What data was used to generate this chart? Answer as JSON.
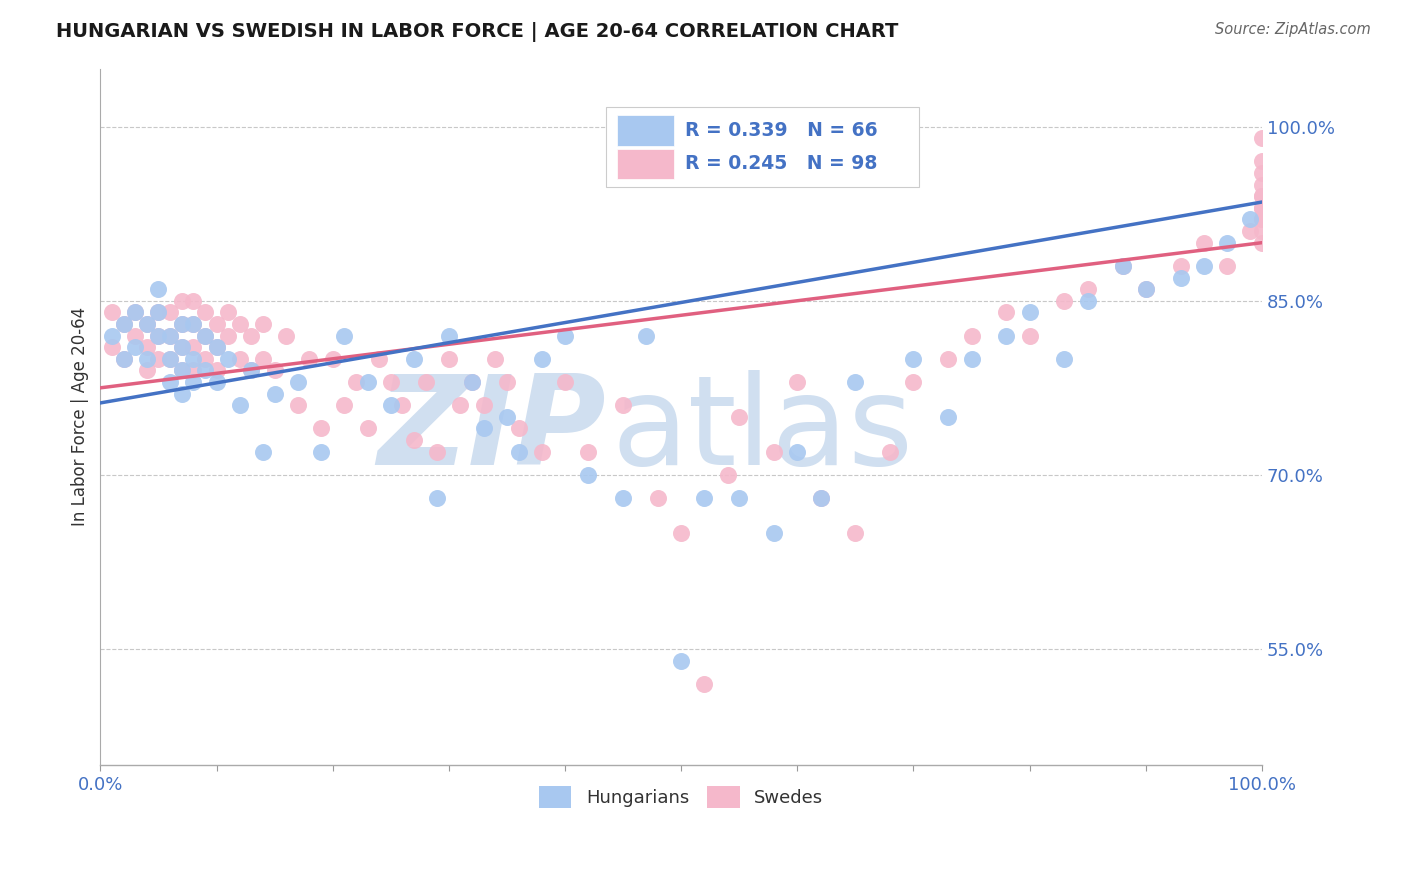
{
  "title": "HUNGARIAN VS SWEDISH IN LABOR FORCE | AGE 20-64 CORRELATION CHART",
  "source_text": "Source: ZipAtlas.com",
  "ylabel": "In Labor Force | Age 20-64",
  "xlim": [
    0.0,
    1.0
  ],
  "ylim": [
    0.45,
    1.05
  ],
  "x_ticks": [
    0.0,
    0.1,
    0.2,
    0.3,
    0.4,
    0.5,
    0.6,
    0.7,
    0.8,
    0.9,
    1.0
  ],
  "x_tick_labels": [
    "0.0%",
    "",
    "",
    "",
    "",
    "",
    "",
    "",
    "",
    "",
    "100.0%"
  ],
  "y_tick_labels_right": [
    "55.0%",
    "70.0%",
    "85.0%",
    "100.0%"
  ],
  "y_ticks_right": [
    0.55,
    0.7,
    0.85,
    1.0
  ],
  "hungarian_color": "#A8C8F0",
  "swedish_color": "#F5B8CB",
  "trend_hungarian_color": "#4472C4",
  "trend_swedish_color": "#E06080",
  "legend_text_color": "#4472C4",
  "R_hungarian": 0.339,
  "N_hungarian": 66,
  "R_swedish": 0.245,
  "N_swedish": 98,
  "watermark_zip": "ZIP",
  "watermark_atlas": "atlas",
  "watermark_color": "#D0DFF0",
  "background_color": "#FFFFFF",
  "grid_color": "#C8C8C8",
  "trend_h_x0": 0.0,
  "trend_h_y0": 0.762,
  "trend_h_x1": 1.0,
  "trend_h_y1": 0.935,
  "trend_s_x0": 0.0,
  "trend_s_y0": 0.775,
  "trend_s_x1": 1.0,
  "trend_s_y1": 0.9,
  "hungarian_x": [
    0.01,
    0.02,
    0.02,
    0.03,
    0.03,
    0.04,
    0.04,
    0.05,
    0.05,
    0.05,
    0.06,
    0.06,
    0.06,
    0.07,
    0.07,
    0.07,
    0.07,
    0.08,
    0.08,
    0.08,
    0.09,
    0.09,
    0.1,
    0.1,
    0.11,
    0.12,
    0.13,
    0.14,
    0.15,
    0.17,
    0.19,
    0.21,
    0.23,
    0.25,
    0.27,
    0.29,
    0.3,
    0.32,
    0.33,
    0.35,
    0.36,
    0.38,
    0.4,
    0.42,
    0.45,
    0.47,
    0.5,
    0.52,
    0.55,
    0.58,
    0.6,
    0.62,
    0.65,
    0.7,
    0.73,
    0.75,
    0.78,
    0.8,
    0.83,
    0.85,
    0.88,
    0.9,
    0.93,
    0.95,
    0.97,
    0.99
  ],
  "hungarian_y": [
    0.82,
    0.83,
    0.8,
    0.84,
    0.81,
    0.83,
    0.8,
    0.82,
    0.84,
    0.86,
    0.82,
    0.8,
    0.78,
    0.83,
    0.81,
    0.79,
    0.77,
    0.83,
    0.8,
    0.78,
    0.82,
    0.79,
    0.81,
    0.78,
    0.8,
    0.76,
    0.79,
    0.72,
    0.77,
    0.78,
    0.72,
    0.82,
    0.78,
    0.76,
    0.8,
    0.68,
    0.82,
    0.78,
    0.74,
    0.75,
    0.72,
    0.8,
    0.82,
    0.7,
    0.68,
    0.82,
    0.54,
    0.68,
    0.68,
    0.65,
    0.72,
    0.68,
    0.78,
    0.8,
    0.75,
    0.8,
    0.82,
    0.84,
    0.8,
    0.85,
    0.88,
    0.86,
    0.87,
    0.88,
    0.9,
    0.92
  ],
  "swedish_x": [
    0.01,
    0.01,
    0.02,
    0.02,
    0.03,
    0.03,
    0.04,
    0.04,
    0.04,
    0.05,
    0.05,
    0.05,
    0.06,
    0.06,
    0.06,
    0.07,
    0.07,
    0.07,
    0.07,
    0.08,
    0.08,
    0.08,
    0.08,
    0.09,
    0.09,
    0.09,
    0.1,
    0.1,
    0.1,
    0.11,
    0.11,
    0.12,
    0.12,
    0.13,
    0.13,
    0.14,
    0.14,
    0.15,
    0.16,
    0.17,
    0.18,
    0.19,
    0.2,
    0.21,
    0.22,
    0.23,
    0.24,
    0.25,
    0.26,
    0.27,
    0.28,
    0.29,
    0.3,
    0.31,
    0.32,
    0.33,
    0.34,
    0.35,
    0.36,
    0.38,
    0.4,
    0.42,
    0.45,
    0.48,
    0.5,
    0.52,
    0.54,
    0.55,
    0.58,
    0.6,
    0.62,
    0.65,
    0.68,
    0.7,
    0.73,
    0.75,
    0.78,
    0.8,
    0.83,
    0.85,
    0.88,
    0.9,
    0.93,
    0.95,
    0.97,
    0.99,
    1.0,
    1.0,
    1.0,
    1.0,
    1.0,
    1.0,
    1.0,
    1.0,
    1.0,
    1.0,
    1.0,
    1.0
  ],
  "swedish_y": [
    0.84,
    0.81,
    0.83,
    0.8,
    0.82,
    0.84,
    0.83,
    0.81,
    0.79,
    0.84,
    0.82,
    0.8,
    0.84,
    0.82,
    0.8,
    0.85,
    0.83,
    0.81,
    0.79,
    0.85,
    0.83,
    0.81,
    0.79,
    0.84,
    0.82,
    0.8,
    0.83,
    0.81,
    0.79,
    0.84,
    0.82,
    0.83,
    0.8,
    0.82,
    0.79,
    0.83,
    0.8,
    0.79,
    0.82,
    0.76,
    0.8,
    0.74,
    0.8,
    0.76,
    0.78,
    0.74,
    0.8,
    0.78,
    0.76,
    0.73,
    0.78,
    0.72,
    0.8,
    0.76,
    0.78,
    0.76,
    0.8,
    0.78,
    0.74,
    0.72,
    0.78,
    0.72,
    0.76,
    0.68,
    0.65,
    0.52,
    0.7,
    0.75,
    0.72,
    0.78,
    0.68,
    0.65,
    0.72,
    0.78,
    0.8,
    0.82,
    0.84,
    0.82,
    0.85,
    0.86,
    0.88,
    0.86,
    0.88,
    0.9,
    0.88,
    0.91,
    0.92,
    0.9,
    0.93,
    0.91,
    0.92,
    0.94,
    0.95,
    0.93,
    0.96,
    0.94,
    0.97,
    0.99
  ]
}
